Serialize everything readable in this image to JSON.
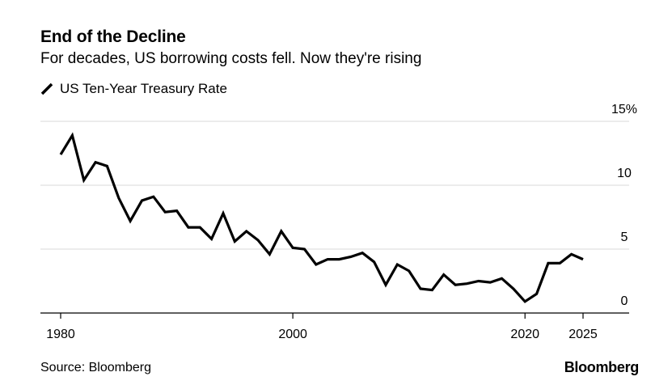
{
  "header": {
    "title": "End of the Decline",
    "subtitle": "For decades, US borrowing costs fell. Now they're rising"
  },
  "legend": {
    "label": "US Ten-Year Treasury Rate"
  },
  "footer": {
    "source": "Source: Bloomberg",
    "brand": "Bloomberg"
  },
  "colors": {
    "line": "#000000",
    "grid": "#d9d9d9",
    "axis": "#000000"
  },
  "chart_data": {
    "type": "line",
    "title": "End of the Decline",
    "subtitle": "For decades, US borrowing costs fell. Now they're rising",
    "xlabel": "",
    "ylabel": "",
    "xlim": [
      1980,
      2025
    ],
    "ylim": [
      0,
      15
    ],
    "grid": true,
    "legend_position": "top-left",
    "x_ticks": [
      {
        "value": 1980,
        "label": "1980"
      },
      {
        "value": 2000,
        "label": "2000"
      },
      {
        "value": 2020,
        "label": "2020"
      },
      {
        "value": 2025,
        "label": "2025"
      }
    ],
    "y_ticks": [
      {
        "value": 0,
        "label": "0"
      },
      {
        "value": 5,
        "label": "5"
      },
      {
        "value": 10,
        "label": "10"
      },
      {
        "value": 15,
        "label": "15%"
      }
    ],
    "series": [
      {
        "name": "US Ten-Year Treasury Rate",
        "x": [
          1980,
          1981,
          1982,
          1983,
          1984,
          1985,
          1986,
          1987,
          1988,
          1989,
          1990,
          1991,
          1992,
          1993,
          1994,
          1995,
          1996,
          1997,
          1998,
          1999,
          2000,
          2001,
          2002,
          2003,
          2004,
          2005,
          2006,
          2007,
          2008,
          2009,
          2010,
          2011,
          2012,
          2013,
          2014,
          2015,
          2016,
          2017,
          2018,
          2019,
          2020,
          2021,
          2022,
          2023,
          2024,
          2025
        ],
        "values": [
          12.4,
          13.9,
          10.4,
          11.8,
          11.5,
          9.0,
          7.2,
          8.8,
          9.1,
          7.9,
          8.0,
          6.7,
          6.7,
          5.8,
          7.8,
          5.6,
          6.4,
          5.7,
          4.6,
          6.4,
          5.1,
          5.0,
          3.8,
          4.2,
          4.2,
          4.4,
          4.7,
          4.0,
          2.2,
          3.8,
          3.3,
          1.9,
          1.8,
          3.0,
          2.2,
          2.3,
          2.5,
          2.4,
          2.7,
          1.9,
          0.9,
          1.5,
          3.9,
          3.9,
          4.6,
          4.2
        ]
      }
    ]
  }
}
